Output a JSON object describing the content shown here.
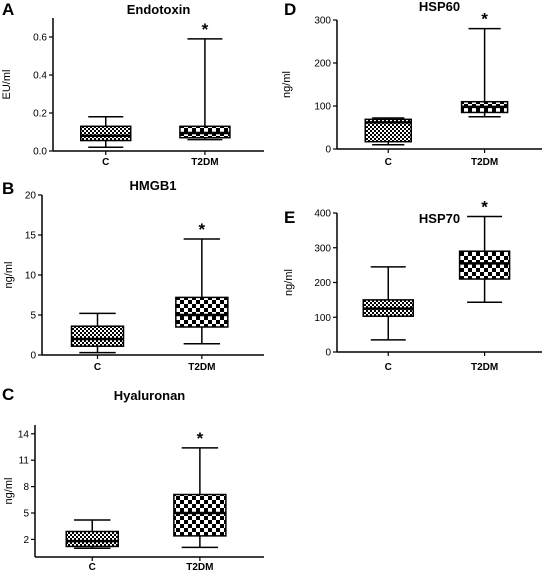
{
  "chart_data": [
    {
      "type": "box",
      "panel": "A",
      "title": "Endotoxin",
      "ylabel": "EU/ml",
      "xlabel": "",
      "ylim": [
        0,
        0.7
      ],
      "yticks": [
        0.0,
        0.2,
        0.4,
        0.6
      ],
      "ytick_labels": [
        "0.0",
        "0.2",
        "0.4",
        "0.6"
      ],
      "categories": [
        "C",
        "T2DM"
      ],
      "boxes": [
        {
          "category": "C",
          "min": 0.02,
          "q1": 0.055,
          "median": 0.08,
          "q3": 0.13,
          "max": 0.18,
          "pattern": "fine"
        },
        {
          "category": "T2DM",
          "min": 0.06,
          "q1": 0.07,
          "median": 0.095,
          "q3": 0.13,
          "max": 0.59,
          "pattern": "coarse"
        }
      ],
      "annotations": [
        {
          "category": "T2DM",
          "text": "*"
        }
      ]
    },
    {
      "type": "box",
      "panel": "D",
      "title": "HSP60",
      "ylabel": "ng/ml",
      "xlabel": "",
      "ylim": [
        0,
        300
      ],
      "yticks": [
        0,
        100,
        200,
        300
      ],
      "ytick_labels": [
        "0",
        "100",
        "200",
        "300"
      ],
      "categories": [
        "C",
        "T2DM"
      ],
      "boxes": [
        {
          "category": "C",
          "min": 10,
          "q1": 17,
          "median": 62,
          "q3": 69,
          "max": 72,
          "pattern": "fine"
        },
        {
          "category": "T2DM",
          "min": 75,
          "q1": 85,
          "median": 98,
          "q3": 110,
          "max": 280,
          "pattern": "coarse"
        }
      ],
      "annotations": [
        {
          "category": "T2DM",
          "text": "*"
        }
      ]
    },
    {
      "type": "box",
      "panel": "B",
      "title": "HMGB1",
      "ylabel": "ng/ml",
      "xlabel": "",
      "ylim": [
        0,
        20
      ],
      "yticks": [
        0,
        5,
        10,
        15,
        20
      ],
      "ytick_labels": [
        "0",
        "5",
        "10",
        "15",
        "20"
      ],
      "categories": [
        "C",
        "T2DM"
      ],
      "boxes": [
        {
          "category": "C",
          "min": 0.3,
          "q1": 1.1,
          "median": 2.0,
          "q3": 3.6,
          "max": 5.2,
          "pattern": "fine"
        },
        {
          "category": "T2DM",
          "min": 1.4,
          "q1": 3.5,
          "median": 5.0,
          "q3": 7.2,
          "max": 14.5,
          "pattern": "coarse"
        }
      ],
      "annotations": [
        {
          "category": "T2DM",
          "text": "*"
        }
      ]
    },
    {
      "type": "box",
      "panel": "E",
      "title": "HSP70",
      "ylabel": "ng/ml",
      "xlabel": "",
      "ylim": [
        0,
        400
      ],
      "yticks": [
        0,
        100,
        200,
        300,
        400
      ],
      "ytick_labels": [
        "0",
        "100",
        "200",
        "300",
        "400"
      ],
      "categories": [
        "C",
        "T2DM"
      ],
      "boxes": [
        {
          "category": "C",
          "min": 35,
          "q1": 103,
          "median": 125,
          "q3": 150,
          "max": 245,
          "pattern": "fine"
        },
        {
          "category": "T2DM",
          "min": 143,
          "q1": 210,
          "median": 255,
          "q3": 290,
          "max": 390,
          "pattern": "coarse"
        }
      ],
      "annotations": [
        {
          "category": "T2DM",
          "text": "*"
        }
      ]
    },
    {
      "type": "box",
      "panel": "C",
      "title": "Hyaluronan",
      "ylabel": "ng/ml",
      "xlabel": "",
      "ylim": [
        0,
        15
      ],
      "yticks": [
        2,
        5,
        8,
        11,
        14
      ],
      "ytick_labels": [
        "2",
        "5",
        "8",
        "11",
        "14"
      ],
      "categories": [
        "C",
        "T2DM"
      ],
      "boxes": [
        {
          "category": "C",
          "min": 1.0,
          "q1": 1.2,
          "median": 1.8,
          "q3": 2.9,
          "max": 4.2,
          "pattern": "fine"
        },
        {
          "category": "T2DM",
          "min": 1.1,
          "q1": 2.4,
          "median": 5.0,
          "q3": 7.1,
          "max": 12.4,
          "pattern": "coarse"
        }
      ],
      "annotations": [
        {
          "category": "T2DM",
          "text": "*"
        }
      ]
    }
  ]
}
